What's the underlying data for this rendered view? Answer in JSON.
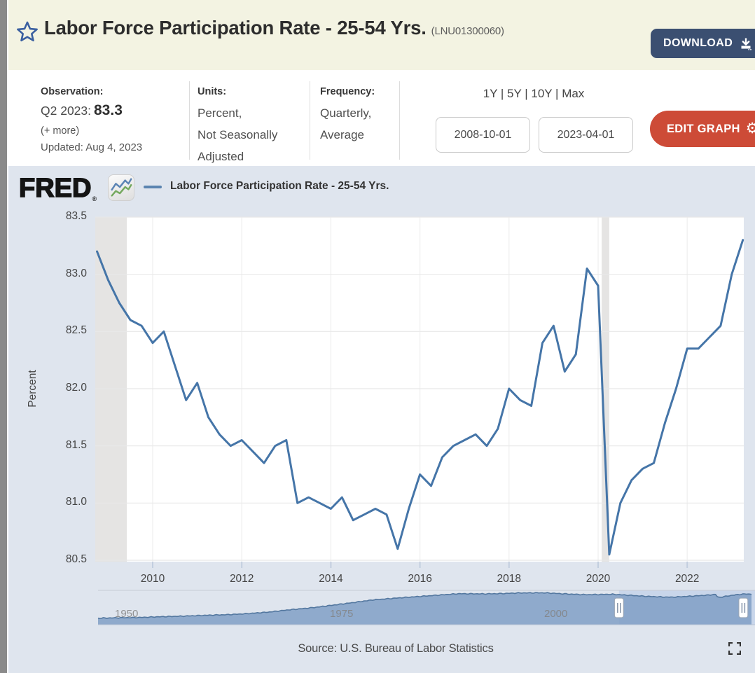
{
  "header": {
    "title": "Labor Force Participation Rate - 25-54 Yrs.",
    "series_id": "(LNU01300060)",
    "download_label": "DOWNLOAD",
    "star_icon": "favorite-star-outline",
    "star_color": "#3a5fa0",
    "download_button_color": "#3b4f71",
    "background_color": "#f3f3e2"
  },
  "meta": {
    "observation_label": "Observation:",
    "observation_period": "Q2 2023:",
    "observation_value": "83.3",
    "more_link": "(+ more)",
    "updated": "Updated: Aug 4, 2023",
    "units_label": "Units:",
    "units_lines": [
      "Percent,",
      "Not Seasonally",
      "Adjusted"
    ],
    "frequency_label": "Frequency:",
    "frequency_lines": [
      "Quarterly,",
      "Average"
    ],
    "range_links": "1Y | 5Y | 10Y | Max",
    "date_start": "2008-10-01",
    "date_end": "2023-04-01",
    "edit_graph_label": "EDIT GRAPH",
    "edit_button_color": "#cd4b37",
    "gear_icon": "⚙"
  },
  "graph": {
    "brand": "FRED",
    "brand_reg": "®",
    "legend_label": "Labor Force Participation Rate - 25-54 Yrs.",
    "y_axis_label": "Percent",
    "panel_color": "#dfe5ee",
    "plot_color": "#ffffff",
    "gridline_color": "#e8e8e8",
    "recession_band_color": "#e5e4e3",
    "tick_mark_color": "#c2cedf"
  },
  "chart_data": {
    "type": "line",
    "title": "Labor Force Participation Rate - 25-54 Yrs.",
    "ylabel": "Percent",
    "ylim": [
      80.5,
      83.5
    ],
    "y_ticks": [
      83.5,
      83.0,
      82.5,
      82.0,
      81.5,
      81.0,
      80.5
    ],
    "x_tick_years": [
      2010,
      2012,
      2014,
      2016,
      2018,
      2020,
      2022
    ],
    "x_start": "2008-10-01",
    "x_end": "2023-04-01",
    "frequency": "Quarterly",
    "line_color": "#4575a8",
    "legend_position": "top",
    "grid": "horizontal",
    "recession_bands": [
      {
        "from_year": 2008.75,
        "to_year": 2009.42
      },
      {
        "from_year": 2020.08,
        "to_year": 2020.25
      }
    ],
    "quarters": [
      "2008 Q4",
      "2009 Q1",
      "2009 Q2",
      "2009 Q3",
      "2009 Q4",
      "2010 Q1",
      "2010 Q2",
      "2010 Q3",
      "2010 Q4",
      "2011 Q1",
      "2011 Q2",
      "2011 Q3",
      "2011 Q4",
      "2012 Q1",
      "2012 Q2",
      "2012 Q3",
      "2012 Q4",
      "2013 Q1",
      "2013 Q2",
      "2013 Q3",
      "2013 Q4",
      "2014 Q1",
      "2014 Q2",
      "2014 Q3",
      "2014 Q4",
      "2015 Q1",
      "2015 Q2",
      "2015 Q3",
      "2015 Q4",
      "2016 Q1",
      "2016 Q2",
      "2016 Q3",
      "2016 Q4",
      "2017 Q1",
      "2017 Q2",
      "2017 Q3",
      "2017 Q4",
      "2018 Q1",
      "2018 Q2",
      "2018 Q3",
      "2018 Q4",
      "2019 Q1",
      "2019 Q2",
      "2019 Q3",
      "2019 Q4",
      "2020 Q1",
      "2020 Q2",
      "2020 Q3",
      "2020 Q4",
      "2021 Q1",
      "2021 Q2",
      "2021 Q3",
      "2021 Q4",
      "2022 Q1",
      "2022 Q2",
      "2022 Q3",
      "2022 Q4",
      "2023 Q1",
      "2023 Q2"
    ],
    "values": [
      83.2,
      82.95,
      82.75,
      82.6,
      82.55,
      82.4,
      82.5,
      82.2,
      81.9,
      82.05,
      81.75,
      81.6,
      81.5,
      81.55,
      81.45,
      81.35,
      81.5,
      81.55,
      81.0,
      81.05,
      81.0,
      80.95,
      81.05,
      80.85,
      80.9,
      80.95,
      80.9,
      80.6,
      80.95,
      81.25,
      81.15,
      81.4,
      81.5,
      81.55,
      81.6,
      81.5,
      81.65,
      82.0,
      81.9,
      81.85,
      82.4,
      82.55,
      82.15,
      82.3,
      83.05,
      82.9,
      80.55,
      81.0,
      81.2,
      81.3,
      81.35,
      81.7,
      82.0,
      82.35,
      82.35,
      82.45,
      82.55,
      83.0,
      83.3
    ]
  },
  "range_selector": {
    "x_labels": [
      "1950",
      "1975",
      "2000"
    ],
    "label_years": [
      1950,
      1975,
      2000
    ],
    "start_year": 1948,
    "end_year": 2024.2,
    "selection": {
      "from_year": 2008.75,
      "to_year": 2023.25
    },
    "area_color": "#7e9cc5",
    "line_color": "#53779f",
    "selection_bg": "#c9d6ea",
    "handle_icon": "drag-grip",
    "series": {
      "years": [
        1948,
        1950,
        1953,
        1955,
        1958,
        1960,
        1963,
        1965,
        1968,
        1970,
        1973,
        1975,
        1978,
        1980,
        1983,
        1985,
        1988,
        1990,
        1993,
        1995,
        1997,
        2000,
        2003,
        2005,
        2008,
        2010,
        2012,
        2014,
        2015,
        2017,
        2019,
        2020.0,
        2020.3,
        2021,
        2022,
        2023.3,
        2024.2
      ],
      "values": [
        64.9,
        65.2,
        65.5,
        66.0,
        66.5,
        67.0,
        67.6,
        68.2,
        69.6,
        71.1,
        72.9,
        74.5,
        77.0,
        78.8,
        80.3,
        81.2,
        82.6,
        83.5,
        83.4,
        83.6,
        84.1,
        84.2,
        83.2,
        82.8,
        83.1,
        82.3,
        81.5,
        81.0,
        80.9,
        81.6,
        82.4,
        83.0,
        80.6,
        81.3,
        82.4,
        83.3,
        83.2
      ]
    }
  },
  "footer": {
    "source": "Source: U.S. Bureau of Labor Statistics",
    "fullscreen_icon": "fullscreen-corners"
  }
}
